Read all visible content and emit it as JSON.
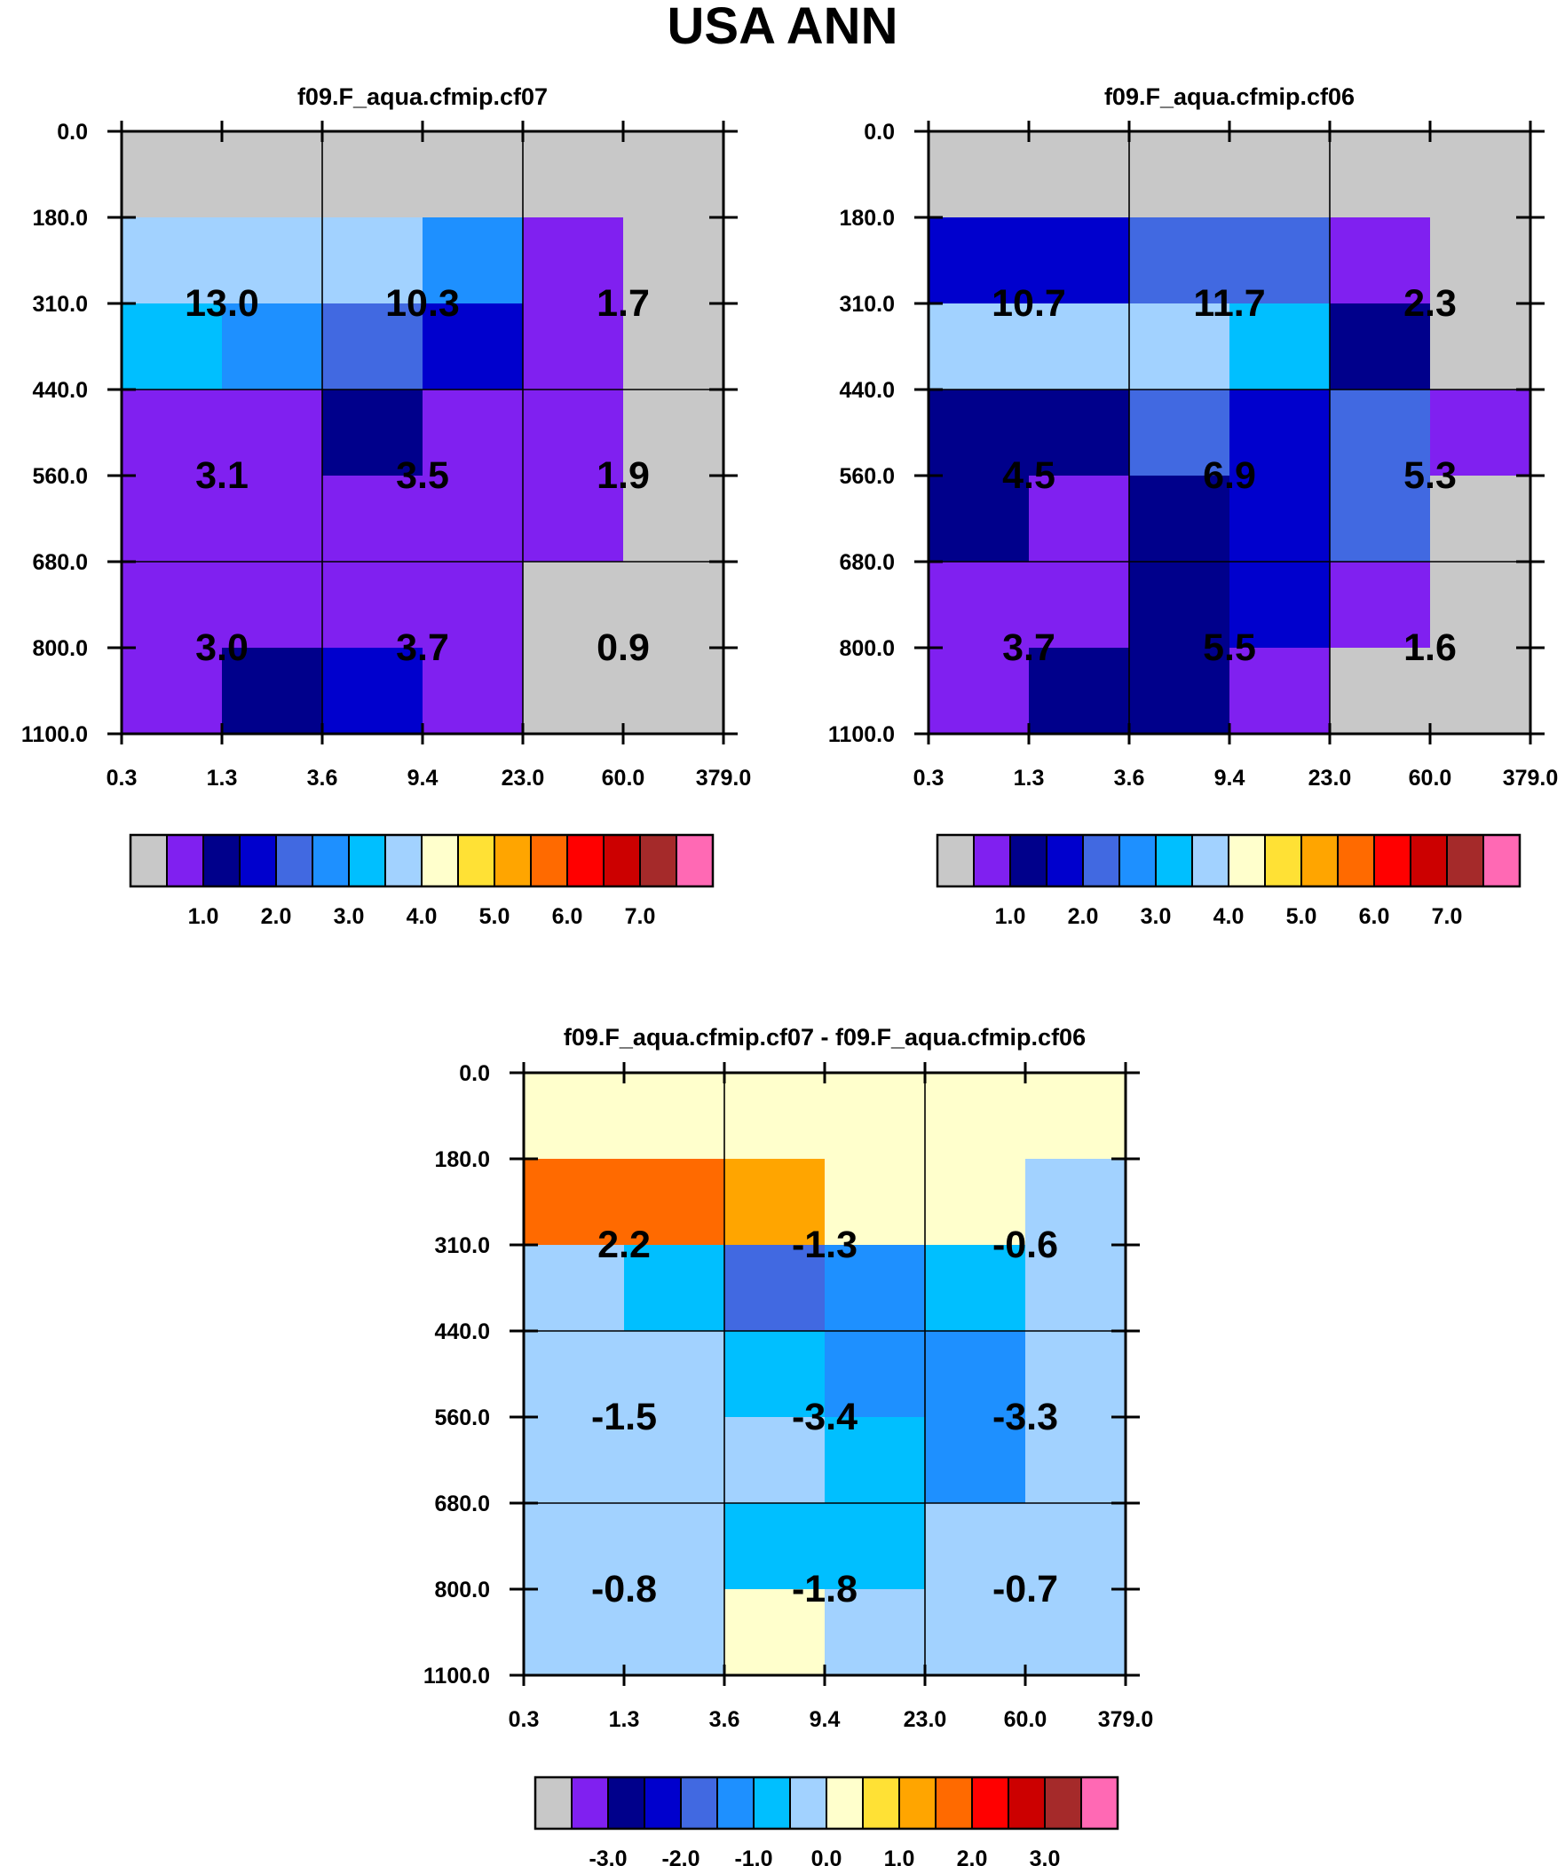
{
  "title": "USA ANN",
  "palette": {
    "abs": [
      "#c8c8c8",
      "#8020f0",
      "#00008b",
      "#0000cd",
      "#4169e1",
      "#1e90ff",
      "#00bfff",
      "#a2d2ff",
      "#ffffcc",
      "#ffe135",
      "#ffa500",
      "#ff6a00",
      "#ff0000",
      "#cc0000",
      "#a52a2a",
      "#ff69b4"
    ],
    "diff": [
      "#c8c8c8",
      "#8020f0",
      "#00008b",
      "#0000cd",
      "#4169e1",
      "#1e90ff",
      "#00bfff",
      "#a2d2ff",
      "#ffffcc",
      "#ffe135",
      "#ffa500",
      "#ff6a00",
      "#ff0000",
      "#cc0000",
      "#a52a2a",
      "#ff69b4"
    ]
  },
  "chart_data": [
    {
      "type": "heatmap",
      "title": "f09.F_aqua.cfmip.cf07",
      "x_tick_labels": [
        "0.3",
        "1.3",
        "3.6",
        "9.4",
        "23.0",
        "60.0",
        "379.0"
      ],
      "y_tick_labels": [
        "0.0",
        "180.0",
        "310.0",
        "440.0",
        "560.0",
        "680.0",
        "800.0",
        "1100.0"
      ],
      "cells": [
        [
          0,
          0,
          0,
          0,
          0,
          0
        ],
        [
          7,
          7,
          7,
          5,
          1,
          0
        ],
        [
          6,
          5,
          4,
          3,
          1,
          0
        ],
        [
          1,
          1,
          2,
          1,
          1,
          0
        ],
        [
          1,
          1,
          1,
          1,
          1,
          0
        ],
        [
          1,
          1,
          1,
          1,
          0,
          0
        ],
        [
          1,
          2,
          3,
          1,
          0,
          0
        ]
      ],
      "values": [
        [
          "13.0",
          "10.3",
          "1.7"
        ],
        [
          "3.1",
          "3.5",
          "1.9"
        ],
        [
          "3.0",
          "3.7",
          "0.9"
        ]
      ],
      "colorbar": {
        "palette": "abs",
        "labels": [
          "1.0",
          "2.0",
          "3.0",
          "4.0",
          "5.0",
          "6.0",
          "7.0"
        ],
        "label_start": 2
      }
    },
    {
      "type": "heatmap",
      "title": "f09.F_aqua.cfmip.cf06",
      "x_tick_labels": [
        "0.3",
        "1.3",
        "3.6",
        "9.4",
        "23.0",
        "60.0",
        "379.0"
      ],
      "y_tick_labels": [
        "0.0",
        "180.0",
        "310.0",
        "440.0",
        "560.0",
        "680.0",
        "800.0",
        "1100.0"
      ],
      "cells": [
        [
          0,
          0,
          0,
          0,
          0,
          0
        ],
        [
          3,
          3,
          4,
          4,
          1,
          0
        ],
        [
          7,
          7,
          7,
          6,
          2,
          0
        ],
        [
          2,
          2,
          4,
          3,
          4,
          1
        ],
        [
          2,
          1,
          2,
          3,
          4,
          0
        ],
        [
          1,
          1,
          2,
          3,
          1,
          0
        ],
        [
          1,
          2,
          2,
          1,
          0,
          0
        ]
      ],
      "values": [
        [
          "10.7",
          "11.7",
          "2.3"
        ],
        [
          "4.5",
          "6.9",
          "5.3"
        ],
        [
          "3.7",
          "5.5",
          "1.6"
        ]
      ],
      "colorbar": {
        "palette": "abs",
        "labels": [
          "1.0",
          "2.0",
          "3.0",
          "4.0",
          "5.0",
          "6.0",
          "7.0"
        ],
        "label_start": 2
      }
    },
    {
      "type": "heatmap",
      "title": "f09.F_aqua.cfmip.cf07 - f09.F_aqua.cfmip.cf06",
      "x_tick_labels": [
        "0.3",
        "1.3",
        "3.6",
        "9.4",
        "23.0",
        "60.0",
        "379.0"
      ],
      "y_tick_labels": [
        "0.0",
        "180.0",
        "310.0",
        "440.0",
        "560.0",
        "680.0",
        "800.0",
        "1100.0"
      ],
      "cells": [
        [
          8,
          8,
          8,
          8,
          8,
          8
        ],
        [
          11,
          11,
          10,
          8,
          8,
          7
        ],
        [
          7,
          6,
          4,
          5,
          6,
          7
        ],
        [
          7,
          7,
          6,
          5,
          5,
          7
        ],
        [
          7,
          7,
          7,
          6,
          5,
          7
        ],
        [
          7,
          7,
          6,
          6,
          7,
          7
        ],
        [
          7,
          7,
          8,
          7,
          7,
          7
        ]
      ],
      "values": [
        [
          "2.2",
          "-1.3",
          "-0.6"
        ],
        [
          "-1.5",
          "-3.4",
          "-3.3"
        ],
        [
          "-0.8",
          "-1.8",
          "-0.7"
        ]
      ],
      "colorbar": {
        "palette": "diff",
        "labels": [
          "-3.0",
          "-2.0",
          "-1.0",
          "0.0",
          "1.0",
          "2.0",
          "3.0"
        ],
        "label_start": 2
      }
    }
  ]
}
